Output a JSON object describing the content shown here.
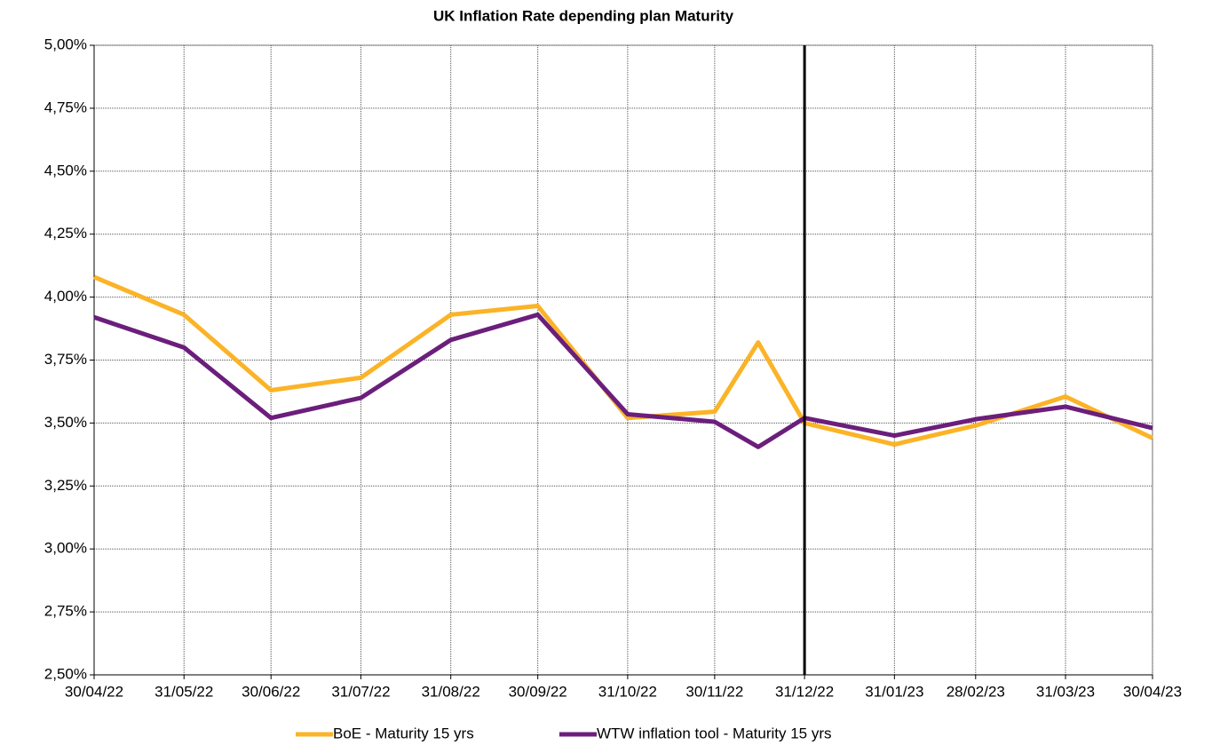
{
  "chart_data": {
    "type": "line",
    "title": "UK Inflation Rate depending plan Maturity",
    "x": [
      "30/04/22",
      "31/05/22",
      "30/06/22",
      "31/07/22",
      "31/08/22",
      "30/09/22",
      "31/10/22",
      "30/11/22",
      "15/12/22",
      "31/12/22",
      "31/01/23",
      "28/02/23",
      "31/03/23",
      "30/04/23"
    ],
    "series": [
      {
        "name": "BoE - Maturity 15 yrs",
        "color": "#fbb327",
        "values": [
          4.08,
          3.93,
          3.63,
          3.68,
          3.93,
          3.965,
          3.52,
          3.545,
          3.82,
          3.5,
          3.415,
          3.49,
          3.605,
          3.44
        ]
      },
      {
        "name": "WTW inflation tool - Maturity 15 yrs",
        "color": "#6b1e7c",
        "values": [
          3.92,
          3.8,
          3.52,
          3.6,
          3.83,
          3.93,
          3.535,
          3.505,
          3.405,
          3.52,
          3.45,
          3.515,
          3.565,
          3.48
        ]
      }
    ],
    "xticks": [
      "30/04/22",
      "31/05/22",
      "30/06/22",
      "31/07/22",
      "31/08/22",
      "30/09/22",
      "31/10/22",
      "30/11/22",
      "31/12/22",
      "31/01/23",
      "28/02/23",
      "31/03/23",
      "30/04/23"
    ],
    "ylim": [
      2.5,
      5
    ],
    "yticks": [
      {
        "value": 2.5,
        "label": "2,50%"
      },
      {
        "value": 2.75,
        "label": "2,75%"
      },
      {
        "value": 3,
        "label": "3,00%"
      },
      {
        "value": 3.25,
        "label": "3,25%"
      },
      {
        "value": 3.5,
        "label": "3,50%"
      },
      {
        "value": 3.75,
        "label": "3,75%"
      },
      {
        "value": 4,
        "label": "4,00%"
      },
      {
        "value": 4.25,
        "label": "4,25%"
      },
      {
        "value": 4.5,
        "label": "4,50%"
      },
      {
        "value": 4.75,
        "label": "4,75%"
      },
      {
        "value": 5,
        "label": "5,00%"
      }
    ],
    "vline": "31/12/22",
    "grid": true,
    "legend": "bottom"
  }
}
